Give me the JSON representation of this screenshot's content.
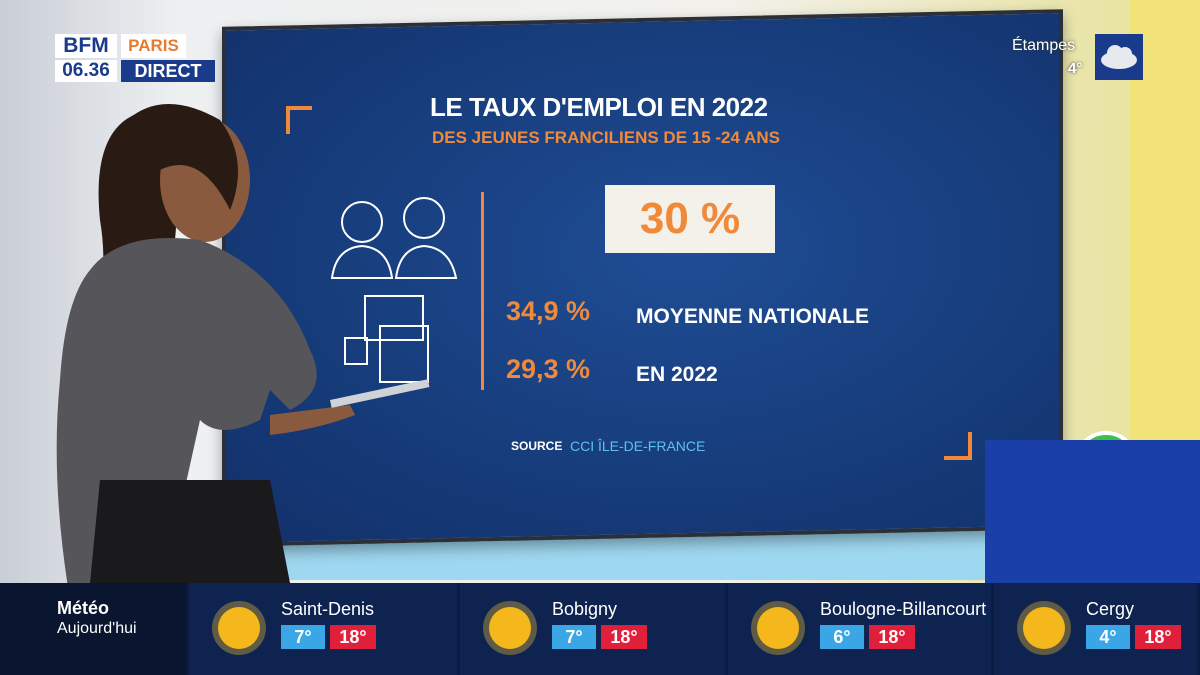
{
  "logo": {
    "brand": "BFM",
    "city": "PARIS",
    "time": "06.36",
    "live": "DIRECT"
  },
  "weather_top": {
    "city": "Étampes",
    "temp": "4°"
  },
  "screen": {
    "title": "LE TAUX D'EMPLOI EN 2022",
    "subtitle": "DES JEUNES FRANCILIENS DE 15 -24 ANS",
    "main_value": "30 %",
    "rows": [
      {
        "value": "34,9 %",
        "label": "MOYENNE NATIONALE"
      },
      {
        "value": "29,3 %",
        "label": "EN 2022"
      }
    ],
    "source_label": "SOURCE",
    "source": "CCI ÎLE-DE-FRANCE"
  },
  "weather_bar": {
    "title": "Météo",
    "subtitle": "Aujourd'hui",
    "cities": [
      {
        "name": "Saint-Denis",
        "min": "7°",
        "max": "18°"
      },
      {
        "name": "Bobigny",
        "min": "7°",
        "max": "18°"
      },
      {
        "name": "Boulogne-Billancourt",
        "min": "6°",
        "max": "18°"
      },
      {
        "name": "Cergy",
        "min": "4°",
        "max": "18°"
      }
    ]
  }
}
